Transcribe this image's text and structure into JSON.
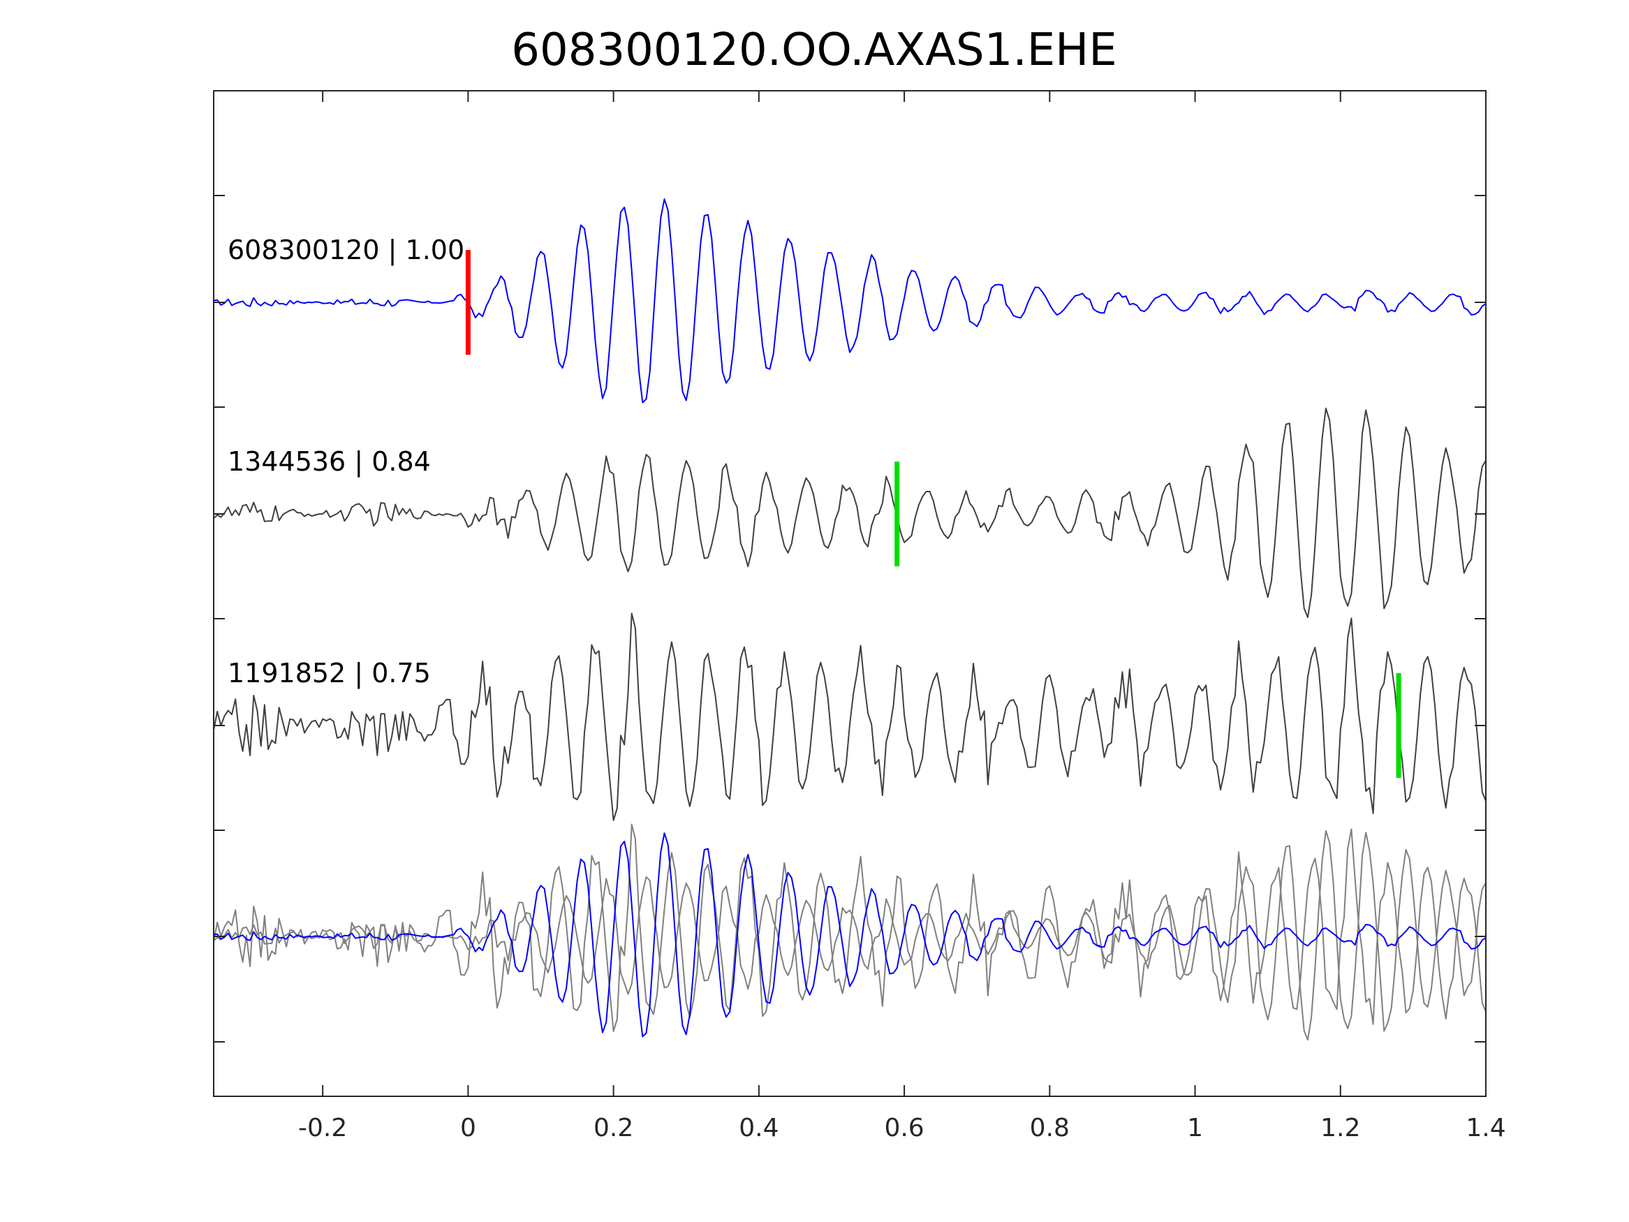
{
  "chart_data": {
    "type": "line",
    "title": "608300120.OO.AXAS1.EHE",
    "xlabel": "",
    "ylabel": "",
    "xlim": [
      -0.35,
      1.4
    ],
    "x_ticks": [
      -0.2,
      0,
      0.2,
      0.4,
      0.6,
      0.8,
      1,
      1.2,
      1.4
    ],
    "x_tick_labels": [
      "-0.2",
      "0",
      "0.2",
      "0.4",
      "0.6",
      "0.8",
      "1",
      "1.2",
      "1.4"
    ],
    "grid": false,
    "legend": "none",
    "traces": [
      {
        "label": "608300120 | 1.00",
        "color": "#0000ff",
        "pick_time": 0.0,
        "pick_color": "#ff0000",
        "envelope": [
          {
            "t": 0.05,
            "amp": 0.25
          },
          {
            "t": 0.12,
            "amp": 0.6
          },
          {
            "t": 0.2,
            "amp": 0.95
          },
          {
            "t": 0.27,
            "amp": 1.0
          },
          {
            "t": 0.38,
            "amp": 0.75
          },
          {
            "t": 0.5,
            "amp": 0.5
          },
          {
            "t": 0.62,
            "amp": 0.3
          },
          {
            "t": 0.75,
            "amp": 0.18
          },
          {
            "t": 0.85,
            "amp": 0.08
          }
        ],
        "noise_level": 0.05,
        "period": 0.057
      },
      {
        "label": "1344536 | 0.84",
        "color": "#404040",
        "pick_time": 0.59,
        "pick_color": "#00dd00",
        "envelope": [
          {
            "t": 0.05,
            "amp": 0.15
          },
          {
            "t": 0.1,
            "amp": 0.3
          },
          {
            "t": 0.2,
            "amp": 0.5
          },
          {
            "t": 0.3,
            "amp": 0.5
          },
          {
            "t": 0.45,
            "amp": 0.35
          },
          {
            "t": 0.6,
            "amp": 0.25
          },
          {
            "t": 0.8,
            "amp": 0.15
          },
          {
            "t": 0.95,
            "amp": 0.25
          },
          {
            "t": 1.05,
            "amp": 0.6
          },
          {
            "t": 1.15,
            "amp": 1.0
          },
          {
            "t": 1.25,
            "amp": 0.95
          },
          {
            "t": 1.35,
            "amp": 0.6
          },
          {
            "t": 1.4,
            "amp": 0.5
          }
        ],
        "noise_level": 0.12,
        "period": 0.055
      },
      {
        "label": "1191852 | 0.75",
        "color": "#404040",
        "pick_time": 1.28,
        "pick_color": "#00dd00",
        "envelope": [
          {
            "t": 0.0,
            "amp": 0.45
          },
          {
            "t": 0.1,
            "amp": 0.6
          },
          {
            "t": 0.2,
            "amp": 0.85
          },
          {
            "t": 0.35,
            "amp": 0.7
          },
          {
            "t": 0.5,
            "amp": 0.6
          },
          {
            "t": 0.7,
            "amp": 0.45
          },
          {
            "t": 0.9,
            "amp": 0.4
          },
          {
            "t": 1.05,
            "amp": 0.5
          },
          {
            "t": 1.2,
            "amp": 0.8
          },
          {
            "t": 1.35,
            "amp": 0.7
          },
          {
            "t": 1.4,
            "amp": 0.5
          }
        ],
        "noise_level": 0.3,
        "period": 0.052
      }
    ]
  }
}
